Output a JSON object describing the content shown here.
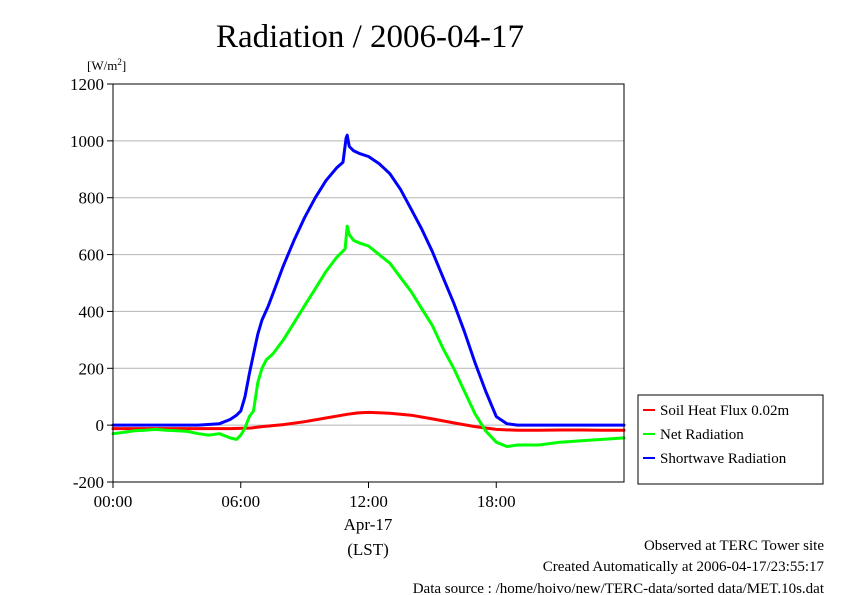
{
  "chart_data": {
    "type": "line",
    "title": "Radiation / 2006-04-17",
    "ylabel": "[W/m2]",
    "ylabel_base": "[W/m",
    "ylabel_sup": "2",
    "ylabel_close": "]",
    "ylim": [
      -200,
      1200
    ],
    "yticks": [
      "-200",
      "0",
      "200",
      "400",
      "600",
      "800",
      "1000",
      "1200"
    ],
    "xlim": [
      0,
      24
    ],
    "xticks": [
      {
        "value": 0,
        "label": "00:00"
      },
      {
        "value": 6,
        "label": "06:00"
      },
      {
        "value": 12,
        "label": "12:00"
      },
      {
        "value": 18,
        "label": "18:00"
      }
    ],
    "xdate_label": "Apr-17",
    "xlabel": "(LST)",
    "grid": "horizontal",
    "legend_position": "right",
    "series": [
      {
        "name": "Soil Heat Flux 0.02m",
        "color": "#ff0000",
        "x": [
          0,
          2,
          4,
          5.5,
          6.5,
          7,
          8,
          9,
          10,
          11,
          11.5,
          12,
          13,
          14,
          15,
          16,
          17,
          18,
          19,
          20,
          21,
          22,
          23,
          24
        ],
        "y": [
          -12,
          -12,
          -12,
          -12,
          -10,
          -5,
          2,
          12,
          25,
          38,
          43,
          45,
          42,
          35,
          22,
          8,
          -5,
          -15,
          -18,
          -18,
          -17,
          -17,
          -18,
          -18
        ]
      },
      {
        "name": "Net Radiation",
        "color": "#00ff00",
        "x": [
          0,
          0.5,
          1,
          1.5,
          2,
          2.5,
          3,
          3.5,
          4,
          4.5,
          5,
          5.5,
          5.8,
          6,
          6.2,
          6.4,
          6.6,
          6.8,
          7,
          7.2,
          7.5,
          8,
          8.5,
          9,
          9.5,
          10,
          10.5,
          10.9,
          11,
          11.1,
          11.3,
          11.6,
          12,
          12.5,
          13,
          13.5,
          14,
          14.5,
          15,
          15.5,
          16,
          16.5,
          17,
          17.5,
          18,
          18.5,
          19,
          20,
          21,
          22,
          23,
          24
        ],
        "y": [
          -30,
          -25,
          -20,
          -18,
          -15,
          -18,
          -20,
          -22,
          -30,
          -35,
          -30,
          -45,
          -50,
          -35,
          -10,
          30,
          50,
          150,
          200,
          230,
          250,
          300,
          360,
          420,
          480,
          540,
          590,
          620,
          700,
          670,
          650,
          640,
          630,
          600,
          570,
          520,
          470,
          410,
          350,
          270,
          200,
          120,
          40,
          -20,
          -60,
          -75,
          -70,
          -70,
          -60,
          -55,
          -50,
          -45
        ]
      },
      {
        "name": "Shortwave Radiation",
        "color": "#0000ff",
        "x": [
          0,
          2,
          4,
          5,
          5.5,
          5.8,
          6,
          6.2,
          6.4,
          6.6,
          6.8,
          7,
          7.3,
          7.6,
          8,
          8.5,
          9,
          9.5,
          10,
          10.5,
          10.8,
          10.95,
          11,
          11.1,
          11.3,
          11.6,
          12,
          12.5,
          13,
          13.5,
          14,
          14.5,
          15,
          15.5,
          16,
          16.5,
          17,
          17.5,
          18,
          18.5,
          19,
          20,
          21,
          22,
          23,
          24
        ],
        "y": [
          0,
          0,
          0,
          5,
          20,
          35,
          50,
          100,
          180,
          250,
          320,
          370,
          420,
          480,
          560,
          650,
          730,
          800,
          860,
          905,
          925,
          1010,
          1020,
          980,
          965,
          955,
          945,
          920,
          885,
          830,
          760,
          690,
          610,
          520,
          430,
          330,
          220,
          120,
          30,
          5,
          0,
          0,
          0,
          0,
          0,
          0
        ]
      }
    ]
  },
  "footer": {
    "observed": "Observed at TERC Tower site",
    "created": "Created Automatically at 2006-04-17/23:55:17",
    "source": "Data source : /home/hoivo/new/TERC-data/sorted  data/MET.10s.dat"
  }
}
